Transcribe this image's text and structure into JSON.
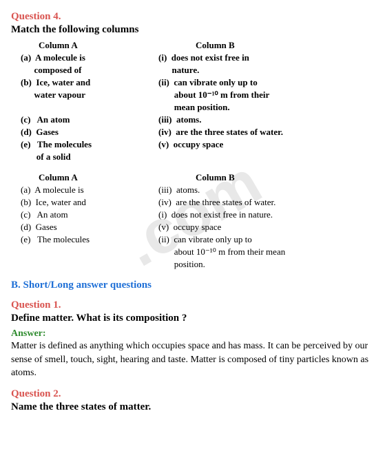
{
  "watermark": ".com",
  "q4": {
    "label": "Question 4.",
    "title": "Match the following columns",
    "headers": {
      "a": "Column A",
      "b": "Column B"
    },
    "question_rows": [
      {
        "a": "(a)  A molecule is",
        "b": "(i)  does not exist free in",
        "bold": true
      },
      {
        "a": "      composed of",
        "b": "      nature.",
        "bold": true
      },
      {
        "a": "(b)  Ice, water and",
        "b": "(ii)  can vibrate only up to",
        "bold": true
      },
      {
        "a": "      water vapour",
        "b": "       about 10⁻¹⁰ m from their",
        "bold": true
      },
      {
        "a": "",
        "b": "       mean position.",
        "bold": true
      },
      {
        "a": "(c)   An atom",
        "b": "(iii)  atoms.",
        "bold": true
      },
      {
        "a": "(d)  Gases",
        "b": "(iv)  are the three states of water.",
        "bold": true
      },
      {
        "a": "(e)   The molecules",
        "b": "(v)  occupy space",
        "bold": true
      },
      {
        "a": "       of a solid",
        "b": "",
        "bold": true
      }
    ],
    "answer_headers": {
      "a": "Column A",
      "b": "Column B"
    },
    "answer_rows": [
      {
        "a": "(a)  A molecule is",
        "b": "(iii)  atoms."
      },
      {
        "a": "(b)  Ice, water and",
        "b": "(iv)  are the three states of water."
      },
      {
        "a": "(c)   An atom",
        "b": "(i)  does not exist free in nature."
      },
      {
        "a": "(d)  Gases",
        "b": "(v)  occupy space"
      },
      {
        "a": "(e)   The molecules",
        "b": "(ii)  can vibrate only up to"
      },
      {
        "a": "",
        "b": "       about 10⁻¹⁰ m from their mean"
      },
      {
        "a": "",
        "b": "       position."
      }
    ]
  },
  "sectionB": "B. Short/Long answer questions",
  "q1": {
    "label": "Question 1.",
    "title": "Define matter. What is its composition ?",
    "answerLabel": "Answer:",
    "answerText": "Matter is defined as anything which occupies space and has mass. It can be perceived by our sense of smell, touch, sight, hearing and taste. Matter is composed of tiny particles known as atoms."
  },
  "q2": {
    "label": "Question 2.",
    "title": "Name the three states of matter."
  }
}
